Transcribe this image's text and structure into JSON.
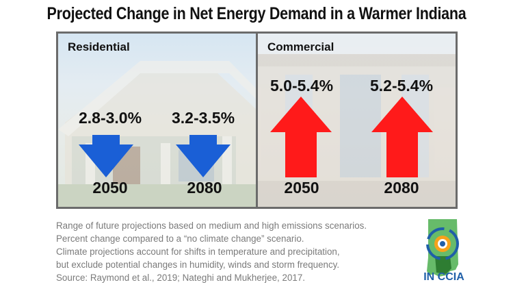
{
  "title": "Projected Change in Net Energy Demand in a Warmer Indiana",
  "chart_data": [
    {
      "type": "bar",
      "panel": "Residential",
      "direction": "decrease",
      "categories": [
        "2050",
        "2080"
      ],
      "ranges": [
        {
          "year": "2050",
          "low": 2.8,
          "high": 3.0,
          "label": "2.8-3.0%"
        },
        {
          "year": "2080",
          "low": 3.2,
          "high": 3.5,
          "label": "3.2-3.5%"
        }
      ],
      "arrow_color": "#1a5fd6"
    },
    {
      "type": "bar",
      "panel": "Commercial",
      "direction": "increase",
      "categories": [
        "2050",
        "2080"
      ],
      "ranges": [
        {
          "year": "2050",
          "low": 5.0,
          "high": 5.4,
          "label": "5.0-5.4%"
        },
        {
          "year": "2080",
          "low": 5.2,
          "high": 5.4,
          "label": "5.2-5.4%"
        }
      ],
      "arrow_color": "#ff1a1a"
    }
  ],
  "caption": [
    "Range of future projections based on medium and high emissions scenarios.",
    "Percent change compared to a “no climate change” scenario.",
    "Climate projections account for shifts in temperature and precipitation,",
    "but exclude potential changes in humidity, winds and storm frequency.",
    "Source: Raymond et al., 2019; Nateghi and Mukherjee, 2017."
  ],
  "logo": {
    "text": "IN CCIA",
    "icon": "indiana-state-logo-icon"
  }
}
